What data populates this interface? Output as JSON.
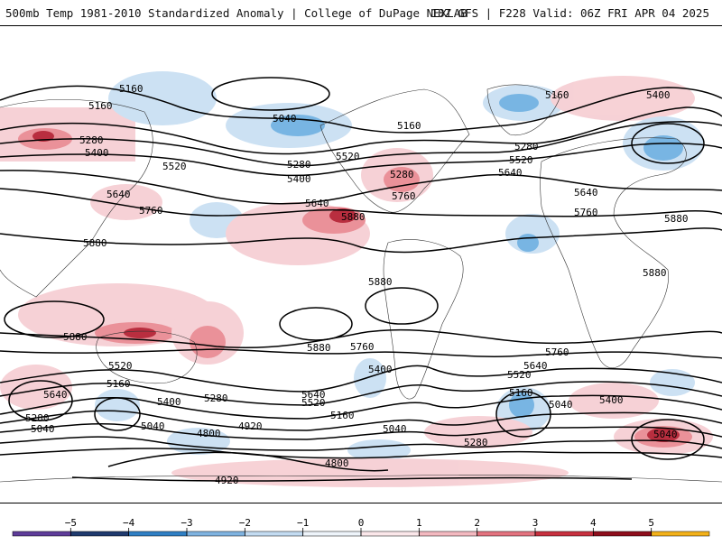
{
  "header": {
    "title": "500mb Temp 1981-2010 Standardized Anomaly | College of DuPage NEXLAB",
    "run": "18Z GFS | F228 Valid: 06Z FRI APR 04 2025"
  },
  "map": {
    "projection": "equirectangular global",
    "contour_field": "500mb geopotential height (dam)",
    "contour_labels": [
      "5160",
      "5160",
      "5040",
      "5160",
      "5160",
      "5400",
      "5280",
      "5400",
      "5520",
      "5280",
      "5520",
      "5400",
      "5280",
      "5520",
      "5640",
      "5640",
      "5640",
      "5760",
      "5760",
      "5880",
      "5880",
      "5880",
      "5880",
      "5880",
      "5760",
      "5880",
      "5880",
      "5520",
      "5160",
      "5640",
      "5400",
      "5280",
      "5280",
      "5040",
      "5040",
      "4920",
      "4800",
      "4800",
      "4920",
      "5640",
      "5520",
      "5160",
      "5040",
      "5280",
      "5760",
      "5400",
      "5640",
      "5520",
      "5160",
      "5040",
      "5400",
      "5040",
      "5760",
      "5640",
      "5280"
    ],
    "anomaly_colors": {
      "strong_warm": "#b2182b",
      "warm": "#e8868f",
      "light_warm": "#f6cdd2",
      "light_cool": "#c7def2",
      "cool": "#6aaee0",
      "strong_cool": "#2a7fc9"
    }
  },
  "colorbar": {
    "ticks": [
      "−5",
      "−4",
      "−3",
      "−2",
      "−1",
      "0",
      "1",
      "2",
      "3",
      "4",
      "5"
    ],
    "colors": [
      "#5e3c99",
      "#1f3a6e",
      "#2f7fc4",
      "#7fb3e0",
      "#c3dbf1",
      "#eef4fa",
      "#fbe7ea",
      "#f3b9c0",
      "#e3737f",
      "#c7303f",
      "#8e0e1c",
      "#f2b11a"
    ]
  }
}
